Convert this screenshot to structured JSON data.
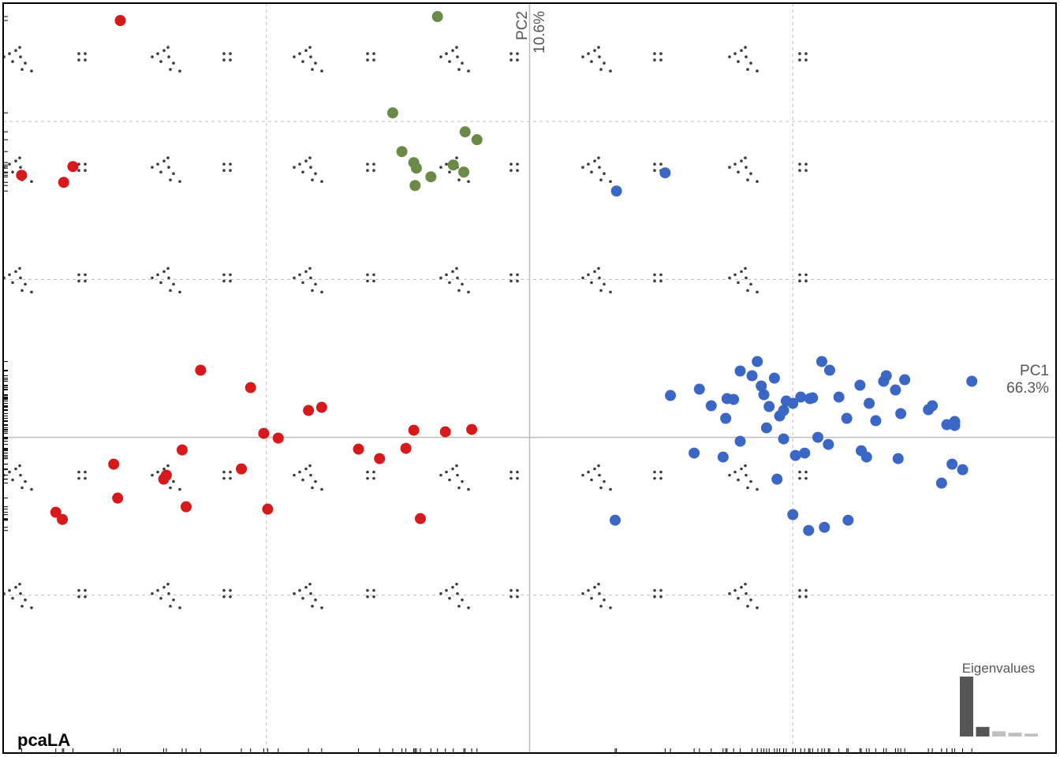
{
  "chart_data": {
    "type": "scatter",
    "title": "pcaLA",
    "xlabel": "PC1",
    "xlabel_pct": "66.3%",
    "ylabel": "PC2",
    "ylabel_pct": "10.6%",
    "xlim": [
      -4,
      4
    ],
    "ylim": [
      -4,
      5.5
    ],
    "grid": true,
    "grid_step": 2,
    "legend": "none",
    "colors": {
      "red": "#d7191c",
      "green": "#6a8a47",
      "blue": "#3a66c6",
      "ink": "#3a3a3a",
      "axis": "#bdbdbd",
      "grid": "#bdbdbd",
      "frame": "#000000",
      "eig_dark": "#555555",
      "eig_light": "#bfbfbf"
    },
    "series": [
      {
        "color_key": "red",
        "x": [
          -3.11,
          -3.54,
          -3.86,
          -3.47,
          -2.5,
          -2.12,
          -2.02,
          -1.91,
          -1.58,
          -1.68,
          -1.3,
          -1.14,
          -0.88,
          -0.94,
          -0.64,
          -0.44,
          -2.64,
          -3.16,
          -2.76,
          -2.78,
          -2.19,
          -3.13,
          -2.61,
          -1.99,
          -0.83,
          -3.6,
          -3.55
        ],
        "y": [
          5.28,
          3.23,
          3.32,
          3.43,
          0.85,
          0.63,
          0.05,
          -0.01,
          0.38,
          0.34,
          -0.15,
          -0.27,
          0.09,
          -0.14,
          0.07,
          0.1,
          -0.16,
          -0.34,
          -0.48,
          -0.53,
          -0.4,
          -0.77,
          -0.88,
          -0.91,
          -1.03,
          -0.95,
          -1.04
        ]
      },
      {
        "color_key": "green",
        "x": [
          -0.7,
          -1.04,
          -0.88,
          -0.97,
          -0.49,
          -0.4,
          -0.87,
          -0.75,
          -0.58,
          -0.86,
          -0.5
        ],
        "y": [
          5.33,
          4.11,
          3.48,
          3.62,
          3.87,
          3.77,
          3.19,
          3.3,
          3.45,
          3.41,
          3.36
        ]
      },
      {
        "color_key": "blue",
        "x": [
          0.66,
          1.03,
          1.07,
          1.29,
          1.38,
          1.49,
          1.5,
          1.55,
          1.6,
          1.69,
          1.73,
          1.76,
          1.78,
          1.82,
          1.86,
          1.9,
          1.93,
          1.95,
          2.0,
          2.06,
          2.13,
          2.15,
          2.22,
          2.28,
          2.35,
          2.41,
          2.51,
          2.58,
          2.63,
          2.69,
          2.71,
          2.85,
          2.82,
          3.06,
          3.03,
          3.17,
          3.23,
          2.78,
          3.36,
          3.23,
          1.6,
          1.25,
          1.47,
          2.02,
          2.09,
          2.27,
          2.56,
          3.13,
          3.21,
          3.29,
          0.65,
          1.88,
          2.0,
          2.12,
          2.24,
          2.42,
          2.52,
          2.8,
          1.8,
          2.19,
          1.93
        ],
        "y": [
          3.12,
          3.35,
          0.53,
          0.61,
          0.4,
          0.24,
          0.49,
          0.48,
          0.84,
          0.78,
          0.96,
          0.65,
          0.54,
          0.39,
          0.75,
          0.27,
          0.34,
          0.46,
          0.43,
          0.51,
          0.49,
          0.5,
          0.96,
          0.85,
          0.51,
          0.24,
          0.66,
          0.43,
          0.21,
          0.71,
          0.78,
          0.73,
          0.3,
          0.4,
          0.35,
          0.16,
          0.2,
          0.6,
          0.71,
          0.15,
          -0.05,
          -0.2,
          -0.25,
          -0.23,
          -0.2,
          -0.09,
          -0.25,
          -0.58,
          -0.34,
          -0.41,
          -1.05,
          -0.53,
          -0.98,
          -1.18,
          -1.14,
          -1.05,
          -0.17,
          -0.27,
          0.12,
          0.0,
          -0.02
        ]
      }
    ],
    "eigenvalues": {
      "title": "Eigenvalues",
      "values": [
        66.3,
        10.6,
        5.8,
        4.2,
        3.1
      ],
      "highlight_count": 2
    }
  }
}
